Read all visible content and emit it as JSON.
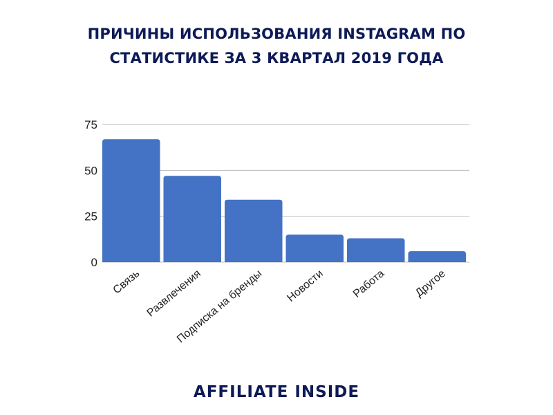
{
  "title": {
    "line1": "ПРИЧИНЫ ИСПОЛЬЗОВАНИЯ INSTAGRAM ПО",
    "line2": "СТАТИСТИКЕ ЗА 3 КВАРТАЛ 2019 ГОДА"
  },
  "chart_data": {
    "type": "bar",
    "title": "ПРИЧИНЫ ИСПОЛЬЗОВАНИЯ INSTAGRAM ПО СТАТИСТИКЕ ЗА 3 КВАРТАЛ 2019 ГОДА",
    "xlabel": "",
    "ylabel": "",
    "categories": [
      "Связь",
      "Развлечения",
      "Подписка на бренды",
      "Новости",
      "Работа",
      "Другое"
    ],
    "values": [
      67,
      47,
      34,
      15,
      13,
      6
    ],
    "yticks": [
      0,
      25,
      50,
      75
    ],
    "ylim": [
      0,
      75
    ],
    "grid": true,
    "legend": "none",
    "bar_color": "#4472c4",
    "grid_color": "#bbbbbb"
  },
  "logo": {
    "text": "AFFILIATE INSIDE",
    "color": "#0d1a57"
  }
}
